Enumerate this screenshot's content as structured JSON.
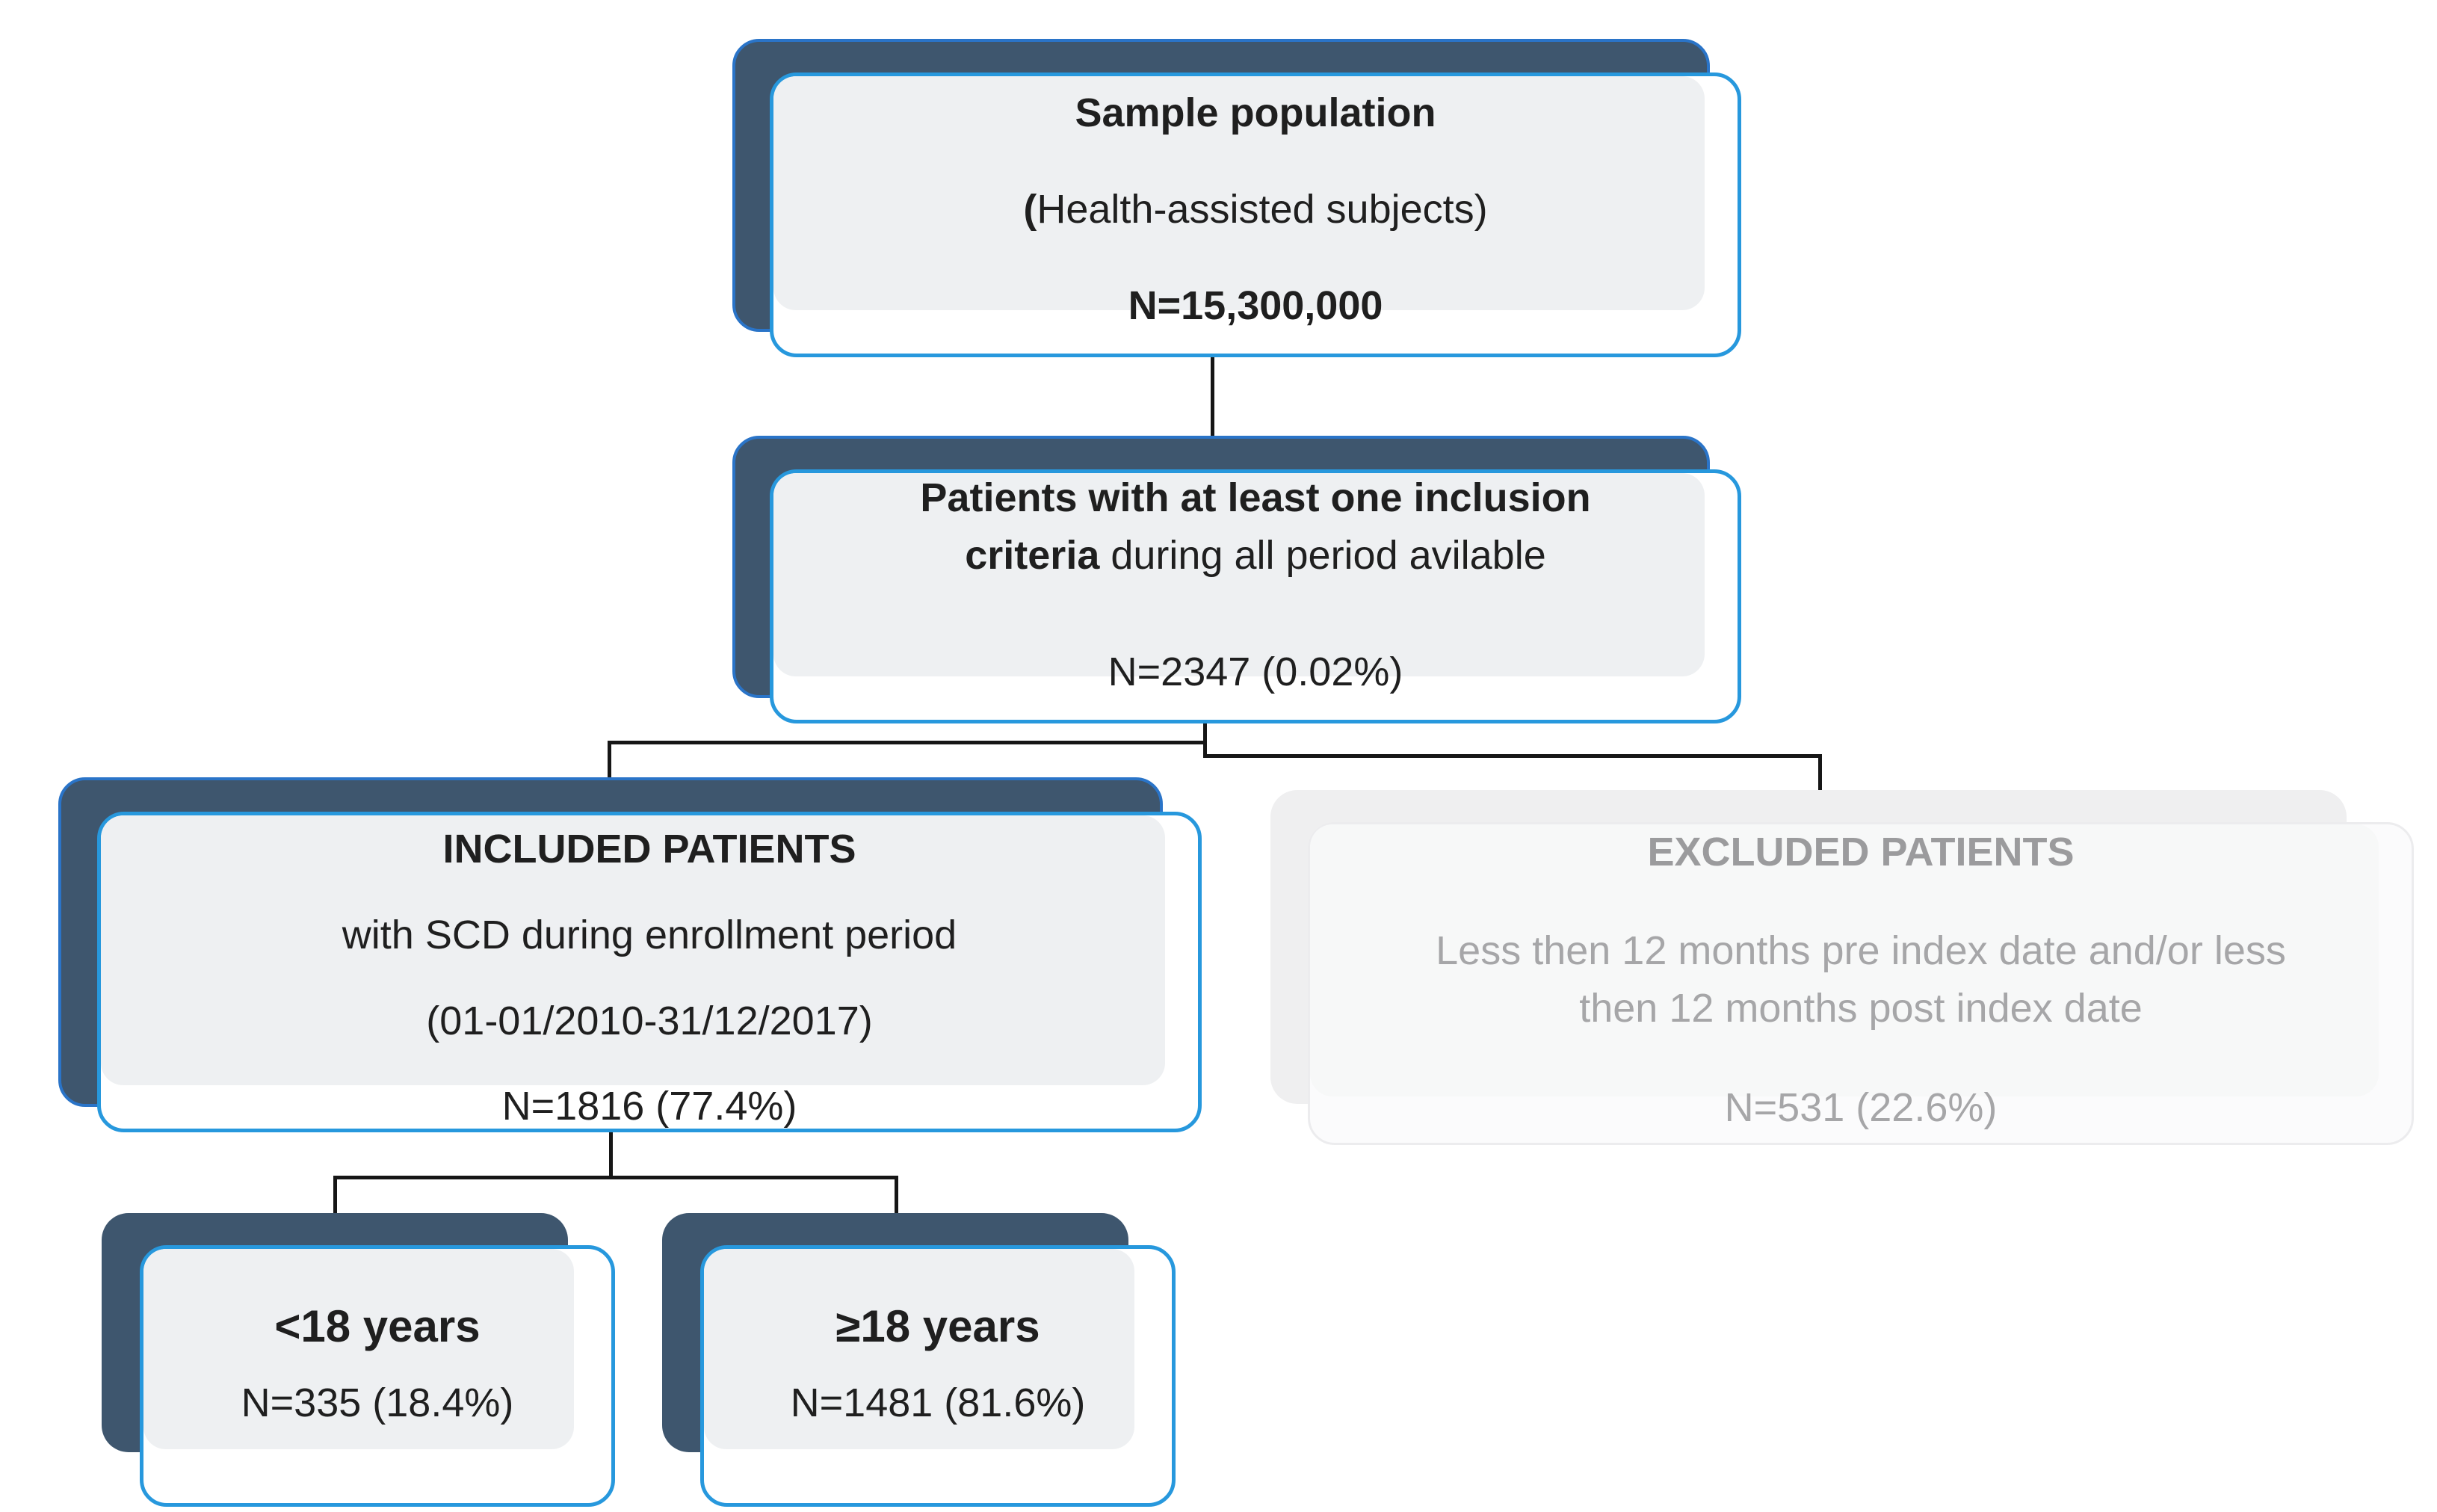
{
  "colors": {
    "navy": "#3e566e",
    "navy-outline": "#2a74c8",
    "accent-blue": "#2798dd",
    "panel-gray": "#eef0f2",
    "faded-shadow": "#efeff0",
    "faded-front": "#fbfbfc",
    "muted-text": "#a6a6a8",
    "line-color": "#161616",
    "text-dark": "#1f1f1f"
  },
  "diagram": {
    "boxes": [
      {
        "id": "sample-population",
        "state": "active",
        "paragraphs": [
          {
            "lines": [
              [
                {
                  "t": "Sample population",
                  "b": true
                }
              ]
            ]
          },
          {
            "lines": [
              [
                {
                  "t": "(",
                  "b": true
                },
                {
                  "t": "Health-assisted subjects)",
                  "b": false
                }
              ]
            ]
          },
          {
            "lines": [
              [
                {
                  "t": "N=15,300,000",
                  "b": true
                }
              ]
            ]
          }
        ]
      },
      {
        "id": "inclusion-criteria",
        "state": "active",
        "paragraphs": [
          {
            "lines": [
              [
                {
                  "t": "Patients with at least one inclusion",
                  "b": true
                }
              ],
              [
                {
                  "t": "criteria",
                  "b": true
                },
                {
                  "t": " during all period avilable",
                  "b": false
                }
              ]
            ]
          },
          {
            "lines": [
              [
                {
                  "t": "N=2347 (0.02%)",
                  "b": false
                }
              ]
            ]
          }
        ]
      },
      {
        "id": "included-patients",
        "state": "active",
        "paragraphs": [
          {
            "lines": [
              [
                {
                  "t": "INCLUDED PATIENTS",
                  "b": true
                }
              ]
            ]
          },
          {
            "lines": [
              [
                {
                  "t": "with SCD during enrollment period",
                  "b": false
                }
              ]
            ]
          },
          {
            "lines": [
              [
                {
                  "t": "(01-01/2010-31/12/2017)",
                  "b": false
                }
              ]
            ]
          },
          {
            "lines": [
              [
                {
                  "t": "N=1816 (77.4%)",
                  "b": false
                }
              ]
            ]
          }
        ]
      },
      {
        "id": "excluded-patients",
        "state": "faded",
        "paragraphs": [
          {
            "lines": [
              [
                {
                  "t": "EXCLUDED PATIENTS",
                  "b": true
                }
              ]
            ]
          },
          {
            "lines": [
              [
                {
                  "t": "Less then 12 months pre index date and/or less",
                  "b": false
                }
              ],
              [
                {
                  "t": "then 12 months post index date",
                  "b": false
                }
              ]
            ]
          },
          {
            "lines": [
              [
                {
                  "t": "N=531 (22.6%)",
                  "b": false
                }
              ]
            ]
          }
        ]
      },
      {
        "id": "under-18-years",
        "state": "active",
        "paragraphs": [
          {
            "lines": [
              [
                {
                  "t": "<18 years",
                  "b": true,
                  "big": true
                }
              ]
            ]
          },
          {
            "lines": [
              [
                {
                  "t": "N=335 (18.4%)",
                  "b": false
                }
              ]
            ]
          }
        ]
      },
      {
        "id": "18-years-and-over",
        "state": "active",
        "paragraphs": [
          {
            "lines": [
              [
                {
                  "t": "≥18 years",
                  "b": true,
                  "big": true
                }
              ]
            ]
          },
          {
            "lines": [
              [
                {
                  "t": "N=1481 (81.6%)",
                  "b": false
                }
              ]
            ]
          }
        ]
      }
    ]
  }
}
